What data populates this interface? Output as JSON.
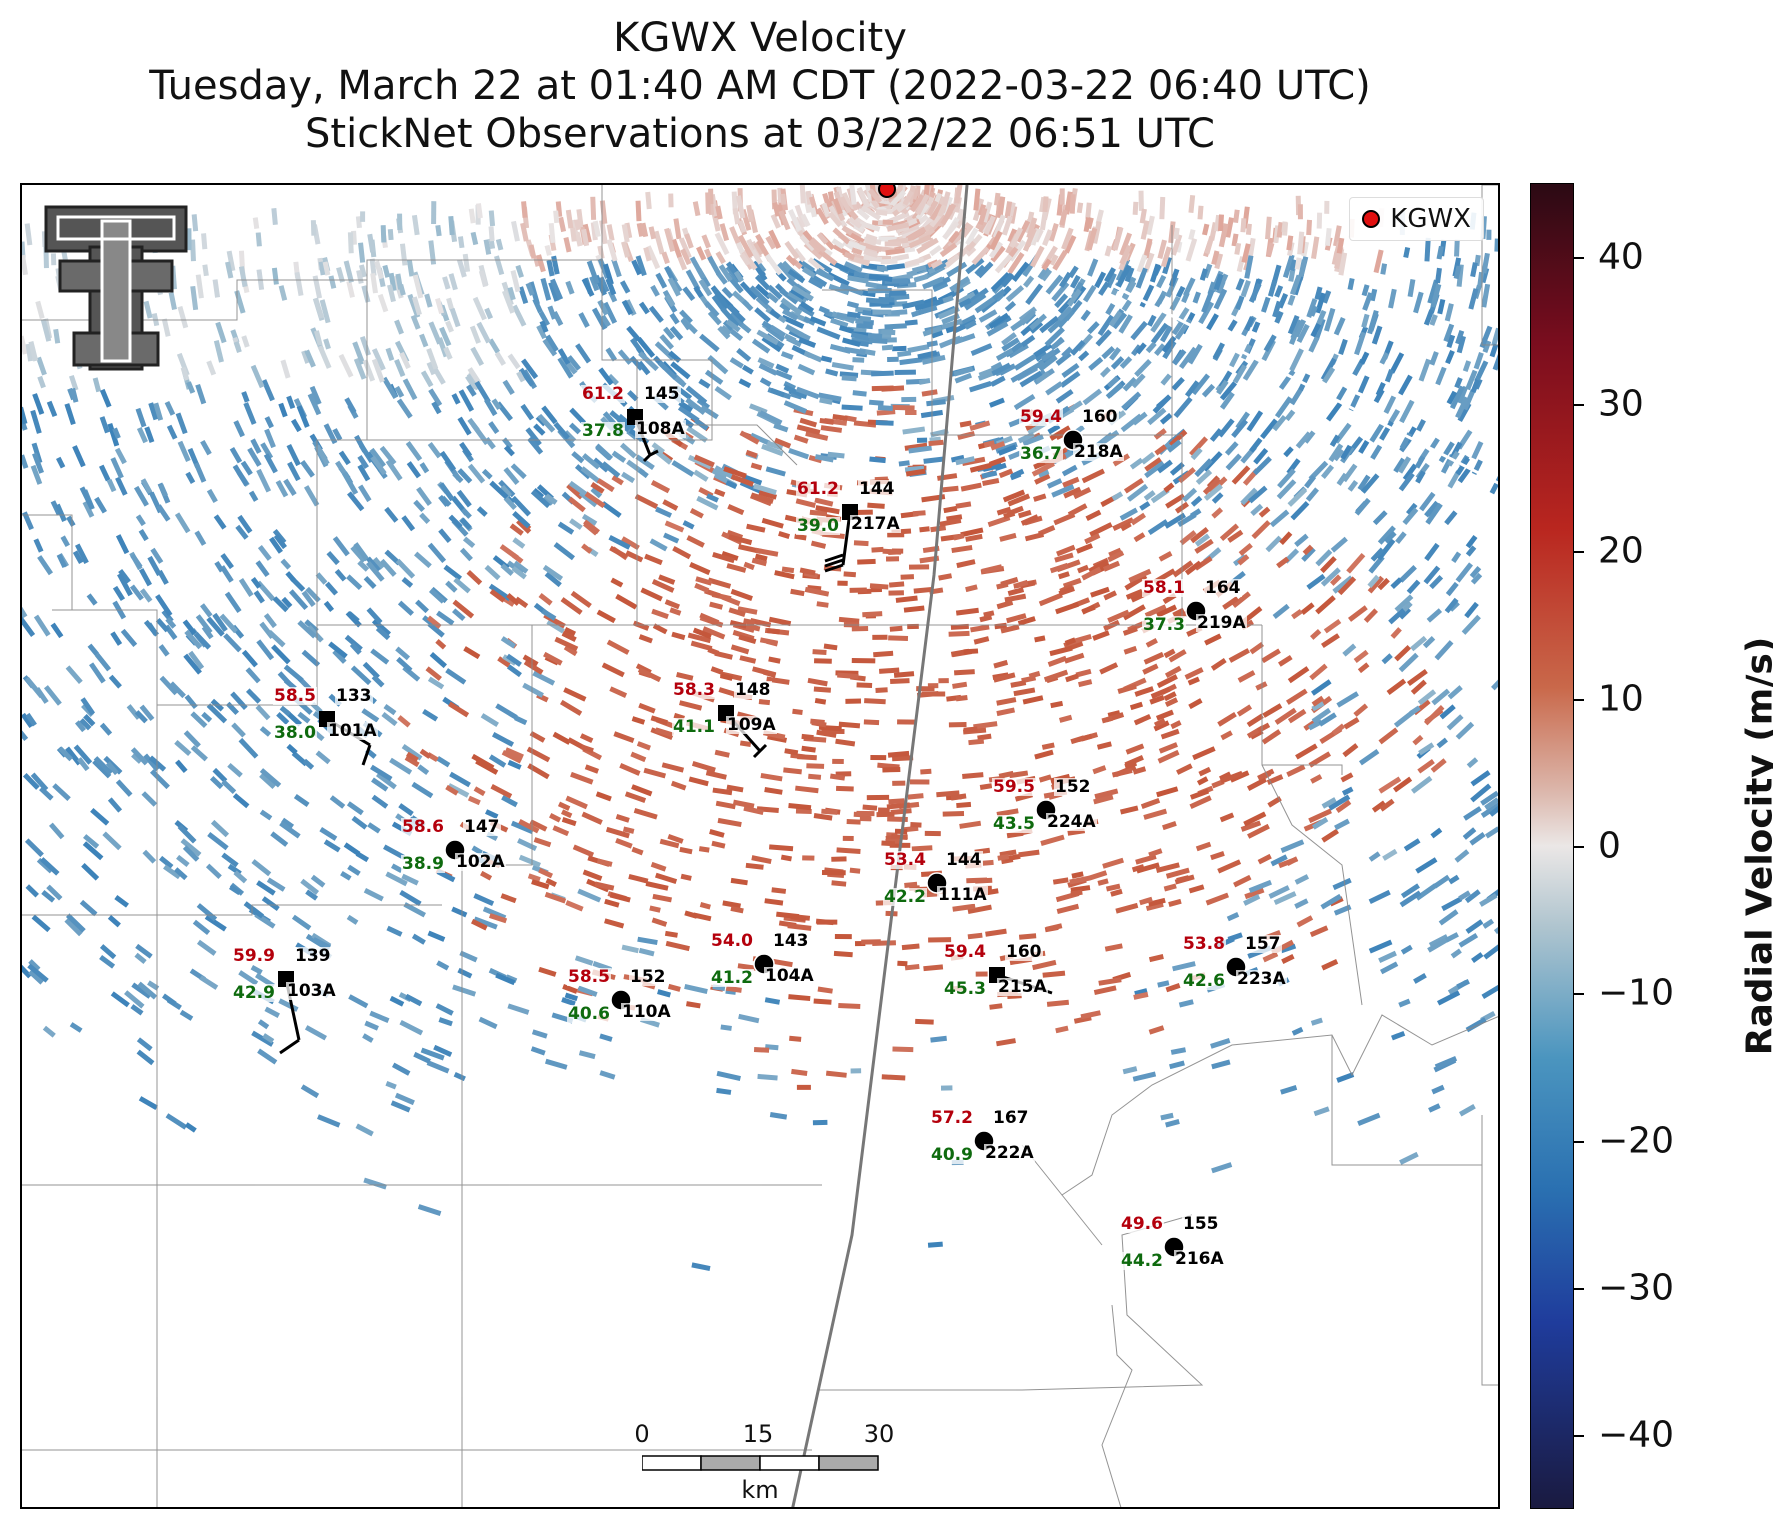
{
  "title": {
    "line1": "KGWX Velocity",
    "line2": "Tuesday, March 22 at 01:40 AM CDT (2022-03-22 06:40 UTC)",
    "line3": "StickNet Observations at 03/22/22 06:51 UTC"
  },
  "legend": {
    "label": "KGWX",
    "marker_color": "#e01010"
  },
  "radar": {
    "name": "KGWX"
  },
  "stations": [
    {
      "id": "108A",
      "temp": "61.2",
      "dew": "37.8",
      "pres": "145",
      "marker": "square"
    },
    {
      "id": "218A",
      "temp": "59.4",
      "dew": "36.7",
      "pres": "160",
      "marker": "circle"
    },
    {
      "id": "217A",
      "temp": "61.2",
      "dew": "39.0",
      "pres": "144",
      "marker": "square"
    },
    {
      "id": "219A",
      "temp": "58.1",
      "dew": "37.3",
      "pres": "164",
      "marker": "circle"
    },
    {
      "id": "101A",
      "temp": "58.5",
      "dew": "38.0",
      "pres": "133",
      "marker": "square"
    },
    {
      "id": "109A",
      "temp": "58.3",
      "dew": "41.1",
      "pres": "148",
      "marker": "square"
    },
    {
      "id": "224A",
      "temp": "59.5",
      "dew": "43.5",
      "pres": "152",
      "marker": "circle"
    },
    {
      "id": "102A",
      "temp": "58.6",
      "dew": "38.9",
      "pres": "147",
      "marker": "circle"
    },
    {
      "id": "111A",
      "temp": "53.4",
      "dew": "42.2",
      "pres": "144",
      "marker": "circle"
    },
    {
      "id": "104A",
      "temp": "54.0",
      "dew": "41.2",
      "pres": "143",
      "marker": "circle"
    },
    {
      "id": "223A",
      "temp": "53.8",
      "dew": "42.6",
      "pres": "157",
      "marker": "circle"
    },
    {
      "id": "103A",
      "temp": "59.9",
      "dew": "42.9",
      "pres": "139",
      "marker": "square"
    },
    {
      "id": "110A",
      "temp": "58.5",
      "dew": "40.6",
      "pres": "152",
      "marker": "circle"
    },
    {
      "id": "215A",
      "temp": "59.4",
      "dew": "45.3",
      "pres": "160",
      "marker": "square"
    },
    {
      "id": "222A",
      "temp": "57.2",
      "dew": "40.9",
      "pres": "167",
      "marker": "circle"
    },
    {
      "id": "216A",
      "temp": "49.6",
      "dew": "44.2",
      "pres": "155",
      "marker": "circle"
    }
  ],
  "scalebar": {
    "labels": [
      "0",
      "15",
      "30"
    ],
    "unit": "km"
  },
  "colorbar": {
    "title": "Radial Velocity (m/s)",
    "ticks": [
      "40",
      "30",
      "20",
      "10",
      "0",
      "−10",
      "−20",
      "−30",
      "−40"
    ],
    "range": [
      -45,
      45
    ],
    "colors": {
      "max": "#2b0a14",
      "zero": "#ebe7e6",
      "min": "#1a1a40"
    }
  },
  "logo": {
    "name": "texas-tech-double-t-logo"
  }
}
